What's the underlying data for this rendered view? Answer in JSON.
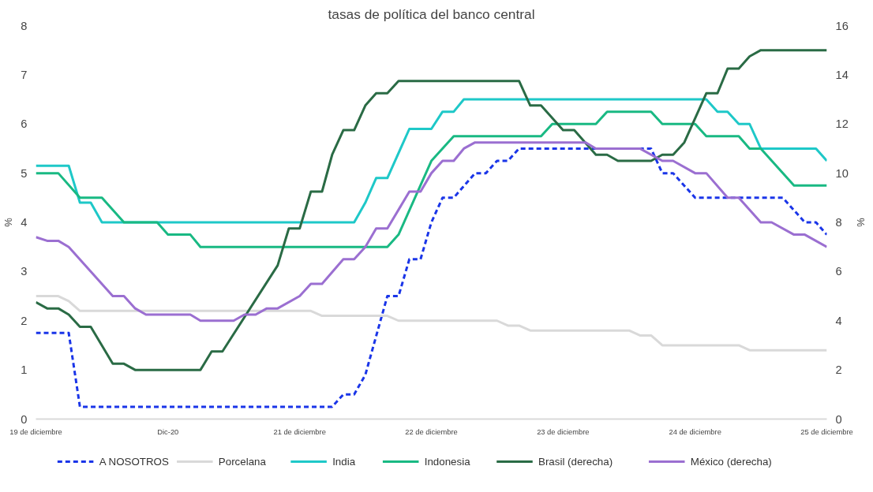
{
  "chart_data": {
    "type": "line",
    "title": "tasas de política del banco central",
    "ylabel": "%",
    "y2label": "%",
    "xlim": [
      "2019-12",
      "2025-12"
    ],
    "xticks": [
      {
        "value": "2019-12",
        "label": "19 de diciembre"
      },
      {
        "value": "2020-12",
        "label": "Dic-20"
      },
      {
        "value": "2021-12",
        "label": "21 de diciembre"
      },
      {
        "value": "2022-12",
        "label": "22 de diciembre"
      },
      {
        "value": "2023-12",
        "label": "23 de diciembre"
      },
      {
        "value": "2024-12",
        "label": "24 de diciembre"
      },
      {
        "value": "2025-12",
        "label": "25 de diciembre"
      }
    ],
    "ylim": [
      0,
      8
    ],
    "yticks": [
      0,
      1,
      2,
      3,
      4,
      5,
      6,
      7,
      8
    ],
    "y2lim": [
      0,
      16
    ],
    "y2ticks": [
      0,
      2,
      4,
      6,
      8,
      10,
      12,
      14,
      16
    ],
    "grid": false,
    "legend": "bottom",
    "series": [
      {
        "name": "A NOSOTROS",
        "color": "#1a35e8",
        "line_style": "dashed",
        "x": [
          "2019-12",
          "2020-03",
          "2020-04",
          "2022-03",
          "2022-04",
          "2022-05",
          "2022-06",
          "2022-08",
          "2022-09",
          "2022-10",
          "2022-11",
          "2022-12",
          "2023-01",
          "2023-02",
          "2023-04",
          "2023-05",
          "2023-06",
          "2023-07",
          "2023-08",
          "2024-08",
          "2024-09",
          "2024-10",
          "2024-12",
          "2025-08",
          "2025-10",
          "2025-11",
          "2025-12"
        ],
        "values": [
          1.75,
          1.75,
          0.25,
          0.25,
          0.5,
          0.5,
          0.9,
          2.5,
          2.5,
          3.25,
          3.25,
          4.0,
          4.5,
          4.5,
          5.0,
          5.0,
          5.25,
          5.25,
          5.5,
          5.5,
          5.0,
          5.0,
          4.5,
          4.5,
          4.0,
          4.0,
          3.75
        ]
      },
      {
        "name": "Porcelana",
        "color": "#d9d9d9",
        "x": [
          "2019-12",
          "2020-02",
          "2020-03",
          "2020-04",
          "2022-01",
          "2022-02",
          "2022-08",
          "2022-09",
          "2023-06",
          "2023-07",
          "2023-08",
          "2023-09",
          "2024-06",
          "2024-07",
          "2024-08",
          "2024-09",
          "2025-04",
          "2025-05",
          "2025-12"
        ],
        "values": [
          2.5,
          2.5,
          2.4,
          2.2,
          2.2,
          2.1,
          2.1,
          2.0,
          2.0,
          1.9,
          1.9,
          1.8,
          1.8,
          1.7,
          1.7,
          1.5,
          1.5,
          1.4,
          1.4
        ]
      },
      {
        "name": "India",
        "color": "#1ec8c8",
        "x": [
          "2019-12",
          "2020-03",
          "2020-04",
          "2020-05",
          "2020-06",
          "2022-05",
          "2022-06",
          "2022-07",
          "2022-08",
          "2022-10",
          "2022-12",
          "2023-01",
          "2023-02",
          "2023-03",
          "2025-01",
          "2025-02",
          "2025-03",
          "2025-04",
          "2025-05",
          "2025-06",
          "2025-11",
          "2025-12"
        ],
        "values": [
          5.15,
          5.15,
          4.4,
          4.4,
          4.0,
          4.0,
          4.4,
          4.9,
          4.9,
          5.9,
          5.9,
          6.25,
          6.25,
          6.5,
          6.5,
          6.25,
          6.25,
          6.0,
          6.0,
          5.5,
          5.5,
          5.25
        ]
      },
      {
        "name": "Indonesia",
        "color": "#19b983",
        "x": [
          "2019-12",
          "2020-02",
          "2020-04",
          "2020-06",
          "2020-08",
          "2020-11",
          "2020-12",
          "2021-02",
          "2021-03",
          "2022-08",
          "2022-09",
          "2022-12",
          "2023-02",
          "2023-10",
          "2023-11",
          "2024-03",
          "2024-04",
          "2024-08",
          "2024-09",
          "2024-12",
          "2025-01",
          "2025-04",
          "2025-05",
          "2025-06",
          "2025-09",
          "2025-12"
        ],
        "values": [
          5.0,
          5.0,
          4.5,
          4.5,
          4.0,
          4.0,
          3.75,
          3.75,
          3.5,
          3.5,
          3.75,
          5.25,
          5.75,
          5.75,
          6.0,
          6.0,
          6.25,
          6.25,
          6.0,
          6.0,
          5.75,
          5.75,
          5.5,
          5.5,
          4.75,
          4.75
        ]
      },
      {
        "name": "Brasil (derecha)",
        "color": "#2a6b45",
        "axis": "y2",
        "x": [
          "2019-12",
          "2020-01",
          "2020-02",
          "2020-03",
          "2020-04",
          "2020-05",
          "2020-07",
          "2020-08",
          "2020-09",
          "2021-03",
          "2021-04",
          "2021-05",
          "2021-10",
          "2021-11",
          "2021-12",
          "2022-01",
          "2022-02",
          "2022-03",
          "2022-04",
          "2022-05",
          "2022-06",
          "2022-07",
          "2022-08",
          "2022-09",
          "2023-08",
          "2023-09",
          "2023-10",
          "2023-12",
          "2024-01",
          "2024-03",
          "2024-04",
          "2024-05",
          "2024-08",
          "2024-09",
          "2024-10",
          "2024-11",
          "2025-01",
          "2025-02",
          "2025-03",
          "2025-04",
          "2025-05",
          "2025-06",
          "2025-12"
        ],
        "values": [
          4.75,
          4.5,
          4.5,
          4.25,
          3.75,
          3.75,
          2.25,
          2.25,
          2.0,
          2.0,
          2.75,
          2.75,
          6.25,
          7.75,
          7.75,
          9.25,
          9.25,
          10.75,
          11.75,
          11.75,
          12.75,
          13.25,
          13.25,
          13.75,
          13.75,
          12.75,
          12.75,
          11.75,
          11.75,
          10.75,
          10.75,
          10.5,
          10.5,
          10.75,
          10.75,
          11.25,
          13.25,
          13.25,
          14.25,
          14.25,
          14.75,
          15.0,
          15.0
        ]
      },
      {
        "name": "México (derecha)",
        "color": "#9b6fd1",
        "axis": "y2",
        "x": [
          "2019-12",
          "2020-01",
          "2020-02",
          "2020-03",
          "2020-07",
          "2020-08",
          "2020-09",
          "2020-10",
          "2021-02",
          "2021-03",
          "2021-06",
          "2021-07",
          "2021-08",
          "2021-09",
          "2021-10",
          "2021-12",
          "2022-01",
          "2022-02",
          "2022-04",
          "2022-05",
          "2022-06",
          "2022-07",
          "2022-08",
          "2022-10",
          "2022-11",
          "2022-12",
          "2023-01",
          "2023-02",
          "2023-03",
          "2023-04",
          "2024-02",
          "2024-03",
          "2024-07",
          "2024-09",
          "2024-10",
          "2024-12",
          "2025-01",
          "2025-03",
          "2025-04",
          "2025-06",
          "2025-07",
          "2025-09",
          "2025-10",
          "2025-12"
        ],
        "values": [
          7.4,
          7.25,
          7.25,
          7.0,
          5.0,
          5.0,
          4.5,
          4.25,
          4.25,
          4.0,
          4.0,
          4.25,
          4.25,
          4.5,
          4.5,
          5.0,
          5.5,
          5.5,
          6.5,
          6.5,
          7.0,
          7.75,
          7.75,
          9.25,
          9.25,
          10.0,
          10.5,
          10.5,
          11.0,
          11.25,
          11.25,
          11.0,
          11.0,
          10.5,
          10.5,
          10.0,
          10.0,
          9.0,
          9.0,
          8.0,
          8.0,
          7.5,
          7.5,
          7.0
        ]
      }
    ]
  }
}
